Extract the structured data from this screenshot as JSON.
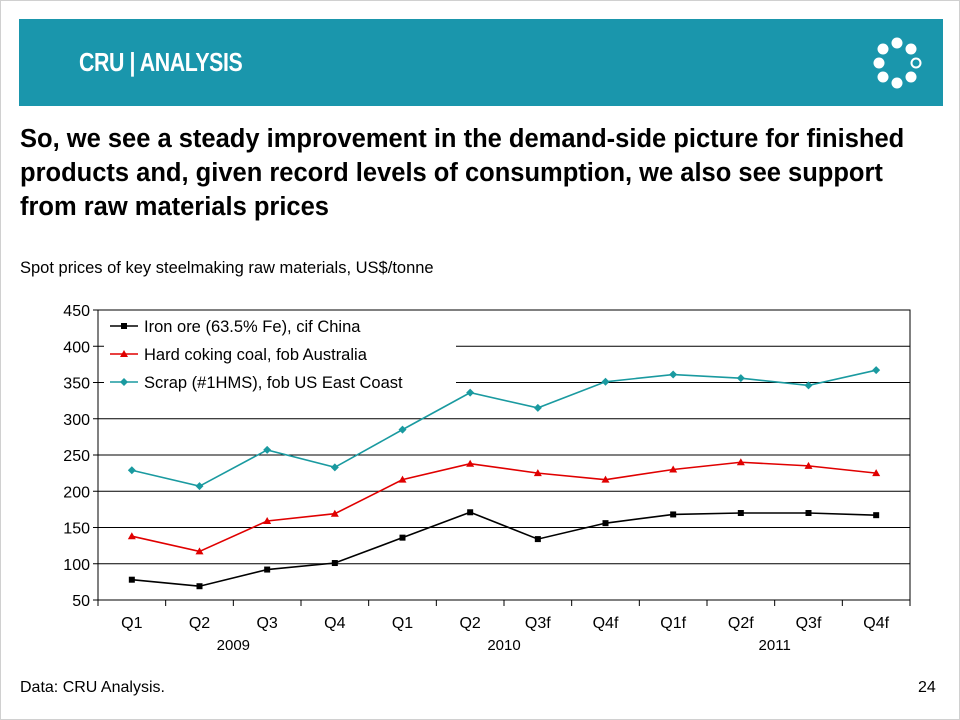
{
  "header": {
    "brand_text": "CRU | ANALYSIS",
    "logo_icon": "cru-ring-icon",
    "banner_color": "#1a96ac"
  },
  "slide": {
    "headline": "So, we see a steady improvement in the demand-side picture for finished products and, given record levels of consumption, we also see support from raw materials prices",
    "subtitle": "Spot prices of key steelmaking raw materials, US$/tonne",
    "source": "Data: CRU Analysis.",
    "page_number": "24"
  },
  "chart_data": {
    "type": "line",
    "categories": [
      "Q1",
      "Q2",
      "Q3",
      "Q4",
      "Q1",
      "Q2",
      "Q3f",
      "Q4f",
      "Q1f",
      "Q2f",
      "Q3f",
      "Q4f"
    ],
    "year_labels": [
      {
        "label": "2009",
        "span": [
          0,
          3
        ]
      },
      {
        "label": "2010",
        "span": [
          4,
          7
        ]
      },
      {
        "label": "2011",
        "span": [
          8,
          11
        ]
      }
    ],
    "ylim": [
      50,
      450
    ],
    "yticks": [
      50,
      100,
      150,
      200,
      250,
      300,
      350,
      400,
      450
    ],
    "grid": true,
    "legend": "top-left",
    "series": [
      {
        "name": "Iron ore (63.5% Fe), cif China",
        "color": "#000000",
        "marker": "square",
        "values": [
          78,
          69,
          92,
          101,
          136,
          171,
          134,
          156,
          168,
          170,
          170,
          167
        ]
      },
      {
        "name": "Hard coking coal, fob Australia",
        "color": "#e00000",
        "marker": "triangle",
        "values": [
          138,
          117,
          159,
          169,
          216,
          238,
          225,
          216,
          230,
          240,
          235,
          225
        ]
      },
      {
        "name": "Scrap (#1HMS), fob US East Coast",
        "color": "#1a9aa0",
        "marker": "diamond",
        "values": [
          229,
          207,
          257,
          233,
          285,
          336,
          315,
          351,
          361,
          356,
          346,
          367
        ]
      }
    ]
  }
}
